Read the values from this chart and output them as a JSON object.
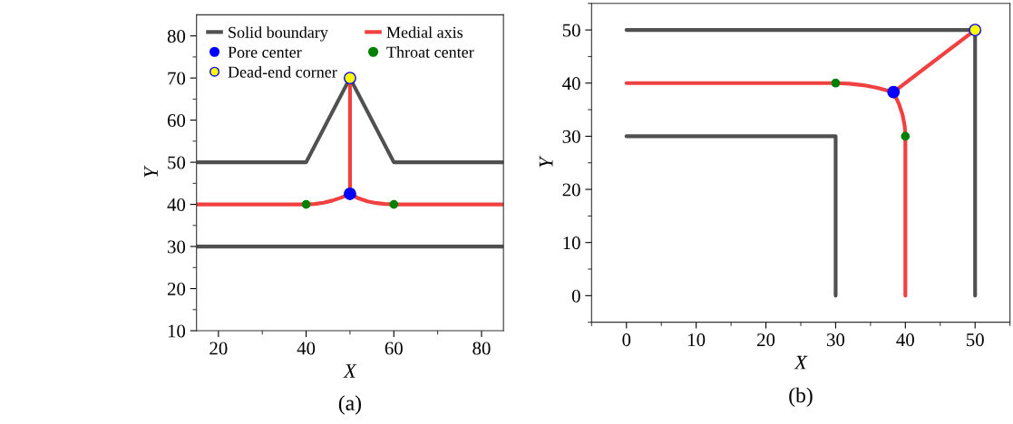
{
  "chart_data": [
    {
      "type": "line",
      "title": "(a)",
      "xlabel": "X",
      "ylabel": "Y",
      "xlim": [
        15,
        85
      ],
      "ylim": [
        10,
        85
      ],
      "xticks": [
        20,
        {
          "value": 30,
          "label": null
        },
        40,
        {
          "value": 50,
          "label": null
        },
        60,
        {
          "value": 70,
          "label": null
        },
        80
      ],
      "yticks": [
        10,
        {
          "value": 15,
          "label": null
        },
        20,
        {
          "value": 25,
          "label": null
        },
        30,
        {
          "value": 35,
          "label": null
        },
        40,
        {
          "value": 45,
          "label": null
        },
        50,
        {
          "value": 55,
          "label": null
        },
        60,
        {
          "value": 65,
          "label": null
        },
        70,
        {
          "value": 75,
          "label": null
        },
        80
      ],
      "grid": false,
      "legend": "top left",
      "series": [
        {
          "name": "Solid boundary",
          "color": "#505050",
          "x": [
            15,
            40,
            50,
            60,
            85
          ],
          "values": [
            50,
            50,
            70,
            50,
            50
          ]
        },
        {
          "color": "#505050",
          "x": [
            15,
            85
          ],
          "values": [
            30,
            30
          ]
        },
        {
          "name": "Pore center",
          "type": "scatter",
          "marker": "circle",
          "color": "#0000ff",
          "x": [
            50
          ],
          "values": [
            42.5
          ]
        },
        {
          "name": "Dead-end corner",
          "type": "scatter",
          "marker": "circle",
          "color": "#ffff00",
          "x": [
            50
          ],
          "values": [
            70
          ]
        },
        {
          "name": "Medial axis",
          "color": "#f04040",
          "x": [
            15,
            40,
            42,
            44,
            46,
            48,
            50,
            50,
            50,
            52,
            54,
            56,
            58,
            60,
            85
          ],
          "values": [
            40,
            40,
            40.1,
            40.4,
            40.9,
            41.6,
            42.5,
            70,
            42.5,
            41.4,
            40.7,
            40.3,
            40.1,
            40,
            40
          ]
        },
        {
          "name": "Throat center",
          "type": "scatter",
          "marker": "circle",
          "color": "#008000",
          "x": [
            40,
            60
          ],
          "values": [
            40,
            40
          ]
        }
      ]
    },
    {
      "type": "line",
      "title": "(b)",
      "xlabel": "X",
      "ylabel": "Y",
      "xlim": [
        -5,
        55
      ],
      "ylim": [
        -5,
        55
      ],
      "xticks": [
        {
          "value": -5,
          "label": null
        },
        0,
        {
          "value": 5,
          "label": null
        },
        10,
        {
          "value": 15,
          "label": null
        },
        20,
        {
          "value": 25,
          "label": null
        },
        30,
        {
          "value": 35,
          "label": null
        },
        40,
        {
          "value": 45,
          "label": null
        },
        50,
        {
          "value": 55,
          "label": null
        }
      ],
      "yticks": [
        {
          "value": -5,
          "label": null
        },
        0,
        {
          "value": 5,
          "label": null
        },
        10,
        {
          "value": 15,
          "label": null
        },
        20,
        {
          "value": 25,
          "label": null
        },
        30,
        {
          "value": 35,
          "label": null
        },
        40,
        {
          "value": 45,
          "label": null
        },
        50,
        {
          "value": 55,
          "label": null
        }
      ],
      "grid": false,
      "series": [
        {
          "color": "#505050",
          "x": [
            0,
            50,
            50
          ],
          "values": [
            50,
            50,
            0
          ]
        },
        {
          "color": "#505050",
          "x": [
            0,
            30,
            30
          ],
          "values": [
            30,
            30,
            0
          ]
        },
        {
          "color": "#f04040",
          "x": [
            0,
            30,
            32,
            34,
            36,
            38.3,
            50,
            38.3,
            39.1,
            39.6,
            39.9,
            40,
            40
          ],
          "values": [
            40,
            40,
            39.9,
            39.6,
            39.1,
            38.3,
            50,
            38.3,
            36,
            34,
            32,
            30,
            0
          ]
        },
        {
          "type": "scatter",
          "marker": "circle",
          "color": "#0000ff",
          "x": [
            38.3
          ],
          "values": [
            38.3
          ]
        },
        {
          "type": "scatter",
          "marker": "circle",
          "color": "#ffff00",
          "x": [
            50
          ],
          "values": [
            50
          ]
        },
        {
          "type": "scatter",
          "marker": "circle",
          "color": "#008000",
          "x": [
            30,
            40
          ],
          "values": [
            40,
            30
          ]
        }
      ]
    }
  ]
}
